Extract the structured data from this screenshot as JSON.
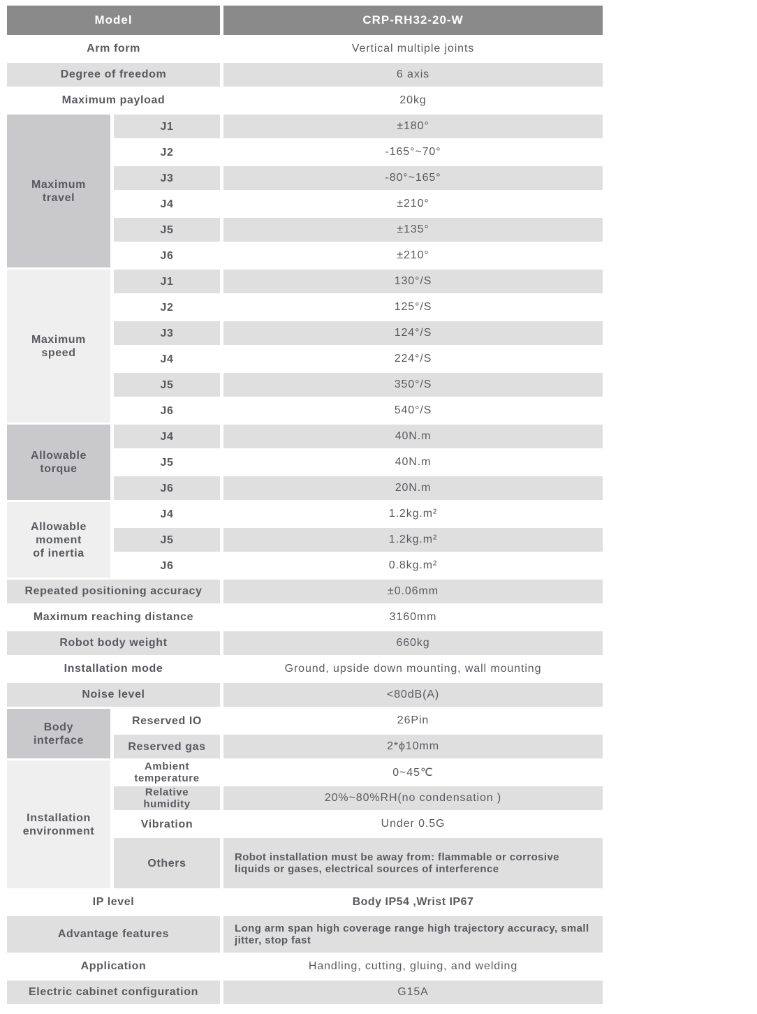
{
  "colors": {
    "header_bg": "#8a8a8a",
    "header_text": "#ffffff",
    "row_gray": "#dfdfe0",
    "group_dark": "#c9c9cb",
    "group_light": "#efefef",
    "text": "#585a5e"
  },
  "header": {
    "model_label": "Model",
    "model_value": "CRP-RH32-20-W"
  },
  "top_rows": [
    {
      "label": "Arm form",
      "value": "Vertical multiple joints"
    },
    {
      "label": "Degree of freedom",
      "value": "6 axis"
    },
    {
      "label": "Maximum payload",
      "value": "20kg"
    }
  ],
  "maximum_travel": {
    "label": "Maximum\ntravel",
    "rows": [
      {
        "joint": "J1",
        "value": "±180°"
      },
      {
        "joint": "J2",
        "value": "-165°~70°"
      },
      {
        "joint": "J3",
        "value": "-80°~165°"
      },
      {
        "joint": "J4",
        "value": "±210°"
      },
      {
        "joint": "J5",
        "value": "±135°"
      },
      {
        "joint": "J6",
        "value": "±210°"
      }
    ]
  },
  "maximum_speed": {
    "label": "Maximum\nspeed",
    "rows": [
      {
        "joint": "J1",
        "value": "130°/S"
      },
      {
        "joint": "J2",
        "value": "125°/S"
      },
      {
        "joint": "J3",
        "value": "124°/S"
      },
      {
        "joint": "J4",
        "value": "224°/S"
      },
      {
        "joint": "J5",
        "value": "350°/S"
      },
      {
        "joint": "J6",
        "value": "540°/S"
      }
    ]
  },
  "allowable_torque": {
    "label": "Allowable\ntorque",
    "rows": [
      {
        "joint": "J4",
        "value": "40N.m"
      },
      {
        "joint": "J5",
        "value": "40N.m"
      },
      {
        "joint": "J6",
        "value": "20N.m"
      }
    ]
  },
  "allowable_inertia": {
    "label": "Allowable\nmoment\nof inertia",
    "rows": [
      {
        "joint": "J4",
        "value": "1.2kg.m²"
      },
      {
        "joint": "J5",
        "value": "1.2kg.m²"
      },
      {
        "joint": "J6",
        "value": "0.8kg.m²"
      }
    ]
  },
  "mid_rows": [
    {
      "label": "Repeated positioning accuracy",
      "value": "±0.06mm"
    },
    {
      "label": "Maximum reaching distance",
      "value": "3160mm"
    },
    {
      "label": "Robot body weight",
      "value": "660kg"
    },
    {
      "label": "Installation mode",
      "value": "Ground,  upside down mounting,  wall mounting"
    },
    {
      "label": "Noise level",
      "value": "<80dB(A)"
    }
  ],
  "body_interface": {
    "label": "Body\ninterface",
    "rows": [
      {
        "name": "Reserved IO",
        "value": "26Pin"
      },
      {
        "name": "Reserved gas",
        "value": "2*ϕ10mm"
      }
    ]
  },
  "installation_environment": {
    "label": "Installation\nenvironment",
    "rows": [
      {
        "name": "Ambient\ntemperature",
        "value": "0~45℃"
      },
      {
        "name": "Relative\nhumidity",
        "value": "20%~80%RH(no condensation )"
      },
      {
        "name": "Vibration",
        "value": "Under 0.5G"
      },
      {
        "name": "Others",
        "value": "Robot installation must be away from: flammable or corrosive liquids or gases, electrical sources of interference"
      }
    ]
  },
  "bottom_rows": [
    {
      "label": "IP level",
      "value": "Body IP54 ,Wrist IP67"
    },
    {
      "label": "Advantage features",
      "value": "Long arm span high coverage range  high trajectory accuracy, small jitter, stop fast"
    },
    {
      "label": "Application",
      "value": "Handling, cutting, gluing, and welding"
    },
    {
      "label": "Electric cabinet configuration",
      "value": "G15A"
    }
  ]
}
